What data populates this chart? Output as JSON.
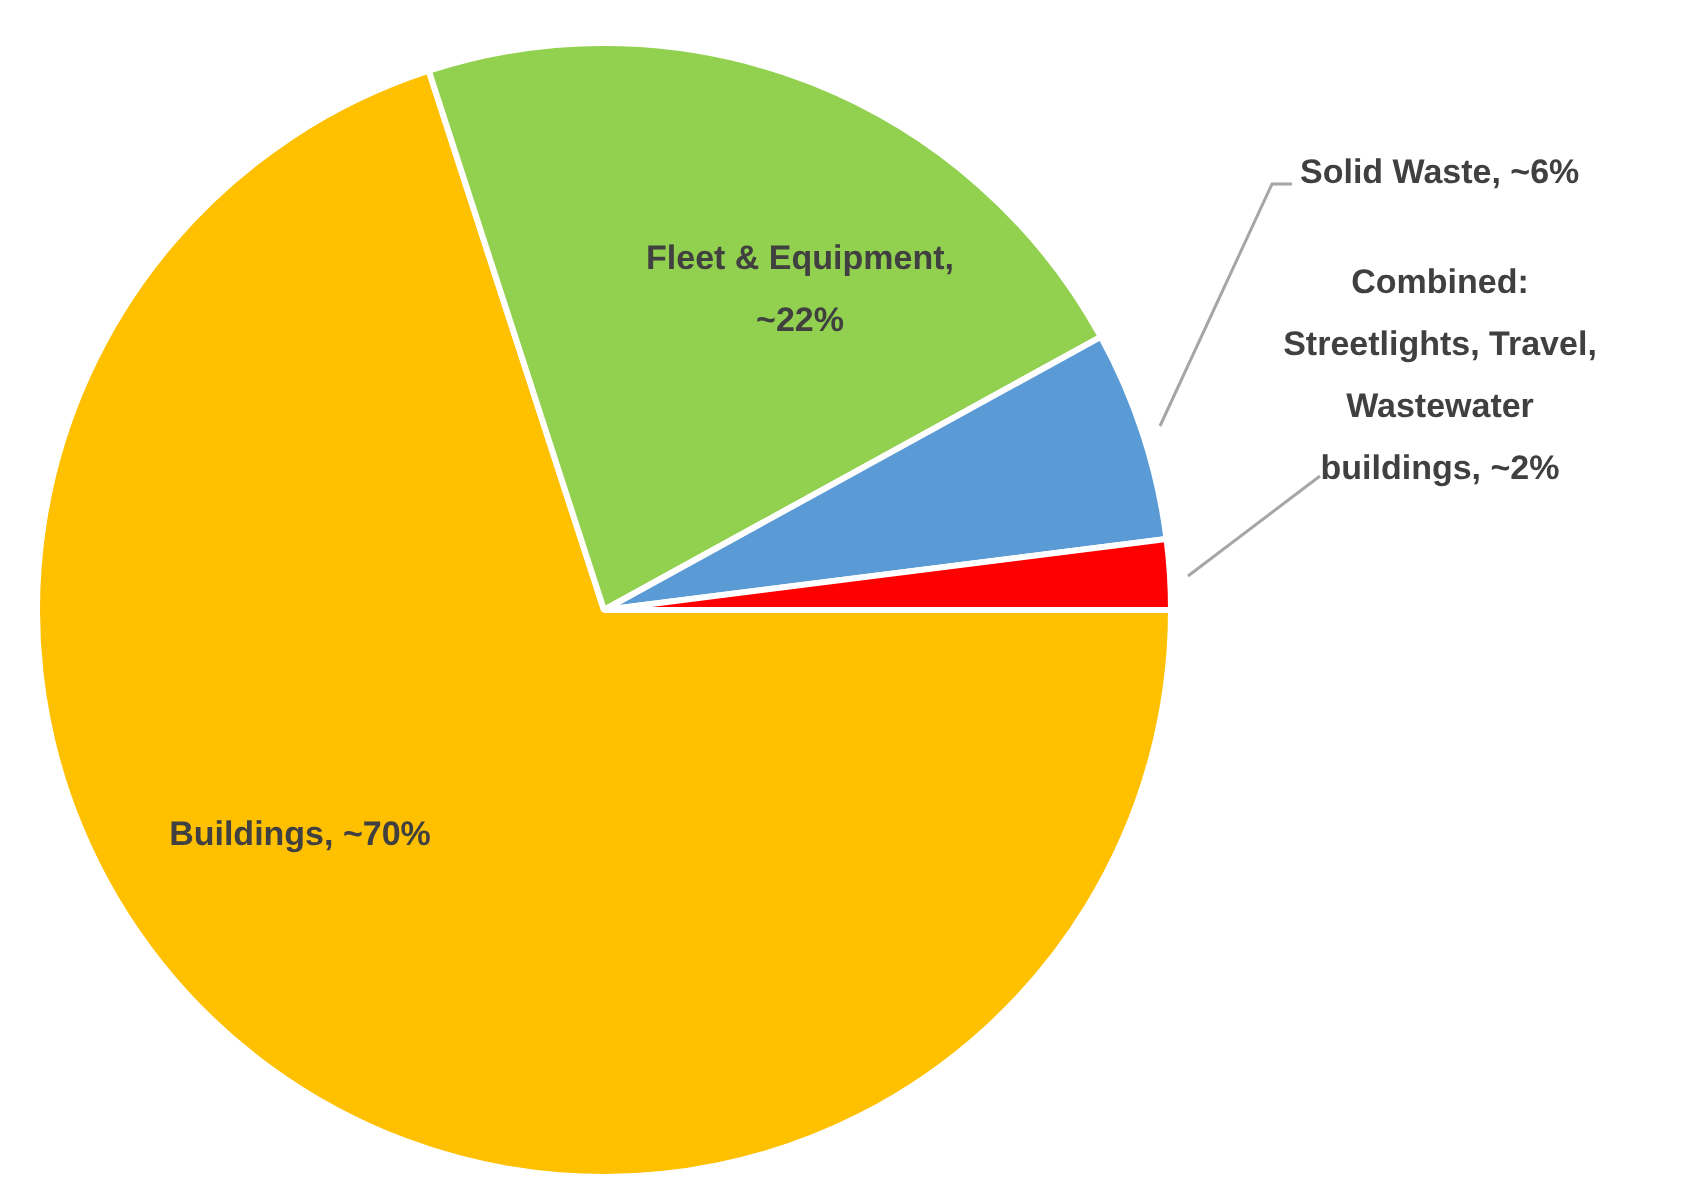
{
  "chart_data": {
    "type": "pie",
    "categories": [
      "Buildings, ~70%",
      "Fleet & Equipment, ~22%",
      "Solid Waste, ~6%",
      "Combined: Streetlights, Travel, Wastewater buildings, ~2%"
    ],
    "values": [
      70,
      22,
      6,
      2
    ],
    "colors": [
      "#ffc000",
      "#92d050",
      "#5b9bd5",
      "#ff0000"
    ],
    "legend": false
  }
}
